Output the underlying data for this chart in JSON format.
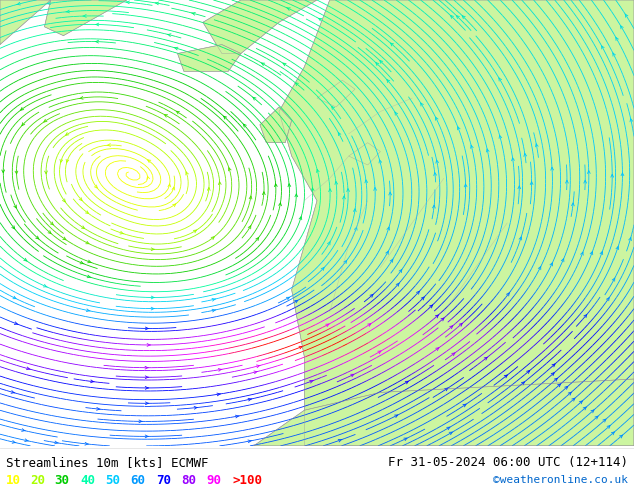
{
  "title_left": "Streamlines 10m [kts] ECMWF",
  "title_right": "Fr 31-05-2024 06:00 UTC (12+114)",
  "watermark": "©weatheronline.co.uk",
  "legend_values": [
    "10",
    "20",
    "30",
    "40",
    "50",
    "60",
    "70",
    "80",
    "90",
    ">100"
  ],
  "legend_colors": [
    "#ffff00",
    "#aaff00",
    "#00cc00",
    "#00ffaa",
    "#00ccff",
    "#0099ff",
    "#0000ff",
    "#9900ff",
    "#ff00ff",
    "#ff0000"
  ],
  "bg_color": "#ffffff",
  "land_color": "#ccf5a0",
  "sea_color": "#f0f0f0",
  "coast_color": "#999999",
  "figsize": [
    6.34,
    4.9
  ],
  "dpi": 100,
  "text_color": "#000000",
  "title_fontsize": 9,
  "legend_fontsize": 9,
  "watermark_color": "#0066cc",
  "stream_low_color": "#ffff00",
  "stream_mid_color": "#aaff00",
  "stream_high_color": "#00cc00"
}
